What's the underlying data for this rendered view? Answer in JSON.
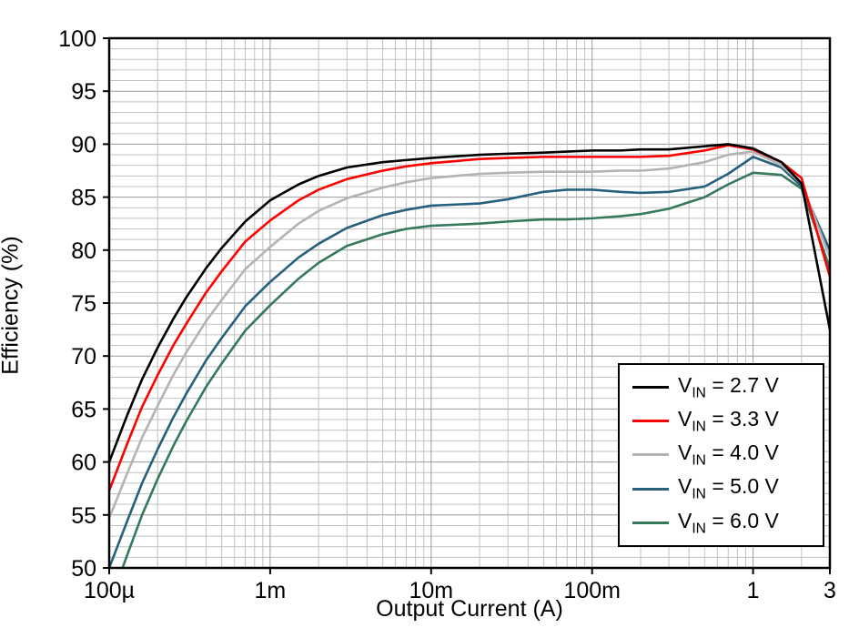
{
  "chart_data": {
    "type": "line",
    "title": "",
    "xlabel": "Output Current (A)",
    "ylabel": "Efficiency (%)",
    "x_scale": "log",
    "xlim": [
      0.0001,
      3
    ],
    "ylim": [
      50,
      100
    ],
    "y_major_step": 5,
    "y_minor_step": 1,
    "grid": true,
    "legend_position": "lower right",
    "x_ticks": [
      {
        "value": 0.0001,
        "label": "100µ"
      },
      {
        "value": 0.001,
        "label": "1m"
      },
      {
        "value": 0.01,
        "label": "10m"
      },
      {
        "value": 0.1,
        "label": "100m"
      },
      {
        "value": 1,
        "label": "1"
      },
      {
        "value": 3,
        "label": "3"
      }
    ],
    "y_ticks": [
      50,
      55,
      60,
      65,
      70,
      75,
      80,
      85,
      90,
      95,
      100
    ],
    "x": [
      0.0001,
      0.00013,
      0.00016,
      0.0002,
      0.00025,
      0.0003,
      0.0004,
      0.0005,
      0.0007,
      0.001,
      0.0015,
      0.002,
      0.003,
      0.005,
      0.007,
      0.01,
      0.02,
      0.03,
      0.05,
      0.07,
      0.1,
      0.15,
      0.2,
      0.3,
      0.5,
      0.7,
      1,
      1.5,
      2,
      3
    ],
    "series": [
      {
        "name": "VIN = 2.7 V",
        "label_main": "V",
        "label_sub": "IN",
        "label_rest": " = 2.7 V",
        "color": "#000000",
        "values": [
          60.0,
          64.5,
          67.8,
          70.8,
          73.5,
          75.5,
          78.3,
          80.2,
          82.7,
          84.7,
          86.2,
          87.0,
          87.8,
          88.3,
          88.5,
          88.7,
          89.0,
          89.1,
          89.2,
          89.3,
          89.4,
          89.4,
          89.5,
          89.5,
          89.8,
          90.0,
          89.6,
          88.3,
          86.3,
          72.5
        ]
      },
      {
        "name": "VIN = 3.3 V",
        "label_main": "V",
        "label_sub": "IN",
        "label_rest": " = 3.3 V",
        "color": "#ff0000",
        "values": [
          57.3,
          61.8,
          65.2,
          68.2,
          71.0,
          73.0,
          76.0,
          78.0,
          80.8,
          82.8,
          84.7,
          85.7,
          86.7,
          87.5,
          87.9,
          88.2,
          88.6,
          88.7,
          88.8,
          88.8,
          88.8,
          88.8,
          88.8,
          88.9,
          89.4,
          89.9,
          89.5,
          88.3,
          86.8,
          77.5
        ]
      },
      {
        "name": "VIN = 4.0 V",
        "label_main": "V",
        "label_sub": "IN",
        "label_rest": " = 4.0 V",
        "color": "#b3b3b3",
        "values": [
          54.7,
          59.0,
          62.3,
          65.3,
          68.2,
          70.3,
          73.3,
          75.3,
          78.2,
          80.3,
          82.5,
          83.7,
          84.9,
          85.9,
          86.4,
          86.8,
          87.2,
          87.3,
          87.4,
          87.4,
          87.4,
          87.5,
          87.5,
          87.7,
          88.3,
          89.0,
          89.3,
          88.0,
          86.3,
          79.3
        ]
      },
      {
        "name": "VIN = 5.0 V",
        "label_main": "V",
        "label_sub": "IN",
        "label_rest": " = 5.0 V",
        "color": "#26607d",
        "values": [
          50.0,
          54.5,
          58.0,
          61.2,
          64.2,
          66.4,
          69.6,
          71.7,
          74.7,
          77.0,
          79.3,
          80.6,
          82.1,
          83.3,
          83.8,
          84.2,
          84.4,
          84.8,
          85.5,
          85.7,
          85.7,
          85.5,
          85.4,
          85.5,
          86.0,
          87.2,
          88.8,
          87.8,
          86.0,
          80.0
        ]
      },
      {
        "name": "VIN = 6.0 V",
        "label_main": "V",
        "label_sub": "IN",
        "label_rest": " = 6.0 V",
        "color": "#35795b",
        "values": [
          46.5,
          51.3,
          55.0,
          58.4,
          61.5,
          63.8,
          67.1,
          69.3,
          72.4,
          74.8,
          77.3,
          78.8,
          80.4,
          81.5,
          82.0,
          82.3,
          82.5,
          82.7,
          82.9,
          82.9,
          83.0,
          83.2,
          83.4,
          83.9,
          85.0,
          86.2,
          87.3,
          87.1,
          85.8,
          78.3
        ]
      }
    ]
  },
  "colors": {
    "background": "#ffffff",
    "axis": "#000000",
    "grid_minor": "#c2c2c2",
    "grid_major": "#9a9a9a",
    "tick_label": "#000000"
  }
}
